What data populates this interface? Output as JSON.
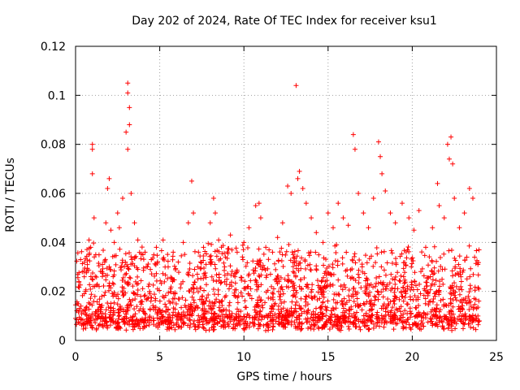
{
  "chart_data": {
    "type": "scatter",
    "title": "Day 202 of 2024, Rate Of TEC Index for receiver ksu1",
    "xlabel": "GPS time / hours",
    "ylabel": "ROTI / TECUs",
    "xlim": [
      0,
      25
    ],
    "ylim": [
      0,
      0.12
    ],
    "xticks": [
      "0",
      "5",
      "10",
      "15",
      "20",
      "25"
    ],
    "yticks": [
      "0",
      "0.02",
      "0.04",
      "0.06",
      "0.08",
      "0.1",
      "0.12"
    ],
    "grid": true,
    "marker": "+",
    "series": [
      {
        "name": "ROTI",
        "color": "#ff0000",
        "points": [
          [
            0.0,
            0.009
          ],
          [
            0.1,
            0.015
          ],
          [
            0.2,
            0.024
          ],
          [
            0.3,
            0.033
          ],
          [
            0.4,
            0.028
          ],
          [
            0.6,
            0.02
          ],
          [
            0.8,
            0.041
          ],
          [
            0.9,
            0.038
          ],
          [
            1.0,
            0.08
          ],
          [
            1.0,
            0.078
          ],
          [
            1.0,
            0.068
          ],
          [
            1.1,
            0.05
          ],
          [
            1.2,
            0.035
          ],
          [
            1.4,
            0.022
          ],
          [
            1.6,
            0.031
          ],
          [
            1.8,
            0.048
          ],
          [
            1.9,
            0.062
          ],
          [
            2.0,
            0.066
          ],
          [
            2.1,
            0.045
          ],
          [
            2.3,
            0.04
          ],
          [
            2.5,
            0.052
          ],
          [
            2.6,
            0.046
          ],
          [
            2.8,
            0.058
          ],
          [
            3.0,
            0.085
          ],
          [
            3.1,
            0.105
          ],
          [
            3.1,
            0.101
          ],
          [
            3.2,
            0.095
          ],
          [
            3.2,
            0.088
          ],
          [
            3.1,
            0.078
          ],
          [
            3.3,
            0.06
          ],
          [
            3.5,
            0.048
          ],
          [
            3.7,
            0.041
          ],
          [
            4.0,
            0.035
          ],
          [
            4.2,
            0.03
          ],
          [
            4.5,
            0.033
          ],
          [
            4.8,
            0.038
          ],
          [
            5.2,
            0.041
          ],
          [
            5.5,
            0.03
          ],
          [
            5.8,
            0.036
          ],
          [
            6.1,
            0.032
          ],
          [
            6.4,
            0.04
          ],
          [
            6.7,
            0.048
          ],
          [
            6.9,
            0.065
          ],
          [
            7.0,
            0.052
          ],
          [
            7.3,
            0.036
          ],
          [
            7.6,
            0.038
          ],
          [
            8.0,
            0.048
          ],
          [
            8.2,
            0.058
          ],
          [
            8.3,
            0.052
          ],
          [
            8.5,
            0.041
          ],
          [
            8.9,
            0.034
          ],
          [
            9.2,
            0.043
          ],
          [
            9.6,
            0.036
          ],
          [
            10.0,
            0.04
          ],
          [
            10.3,
            0.046
          ],
          [
            10.7,
            0.055
          ],
          [
            10.9,
            0.056
          ],
          [
            11.0,
            0.05
          ],
          [
            11.3,
            0.038
          ],
          [
            11.7,
            0.036
          ],
          [
            12.0,
            0.042
          ],
          [
            12.3,
            0.048
          ],
          [
            12.6,
            0.063
          ],
          [
            12.8,
            0.06
          ],
          [
            13.1,
            0.104
          ],
          [
            13.2,
            0.066
          ],
          [
            13.3,
            0.069
          ],
          [
            13.5,
            0.062
          ],
          [
            13.7,
            0.056
          ],
          [
            14.0,
            0.05
          ],
          [
            14.3,
            0.044
          ],
          [
            14.7,
            0.04
          ],
          [
            15.0,
            0.052
          ],
          [
            15.3,
            0.046
          ],
          [
            15.6,
            0.056
          ],
          [
            15.9,
            0.05
          ],
          [
            16.2,
            0.047
          ],
          [
            16.5,
            0.084
          ],
          [
            16.6,
            0.078
          ],
          [
            16.8,
            0.06
          ],
          [
            17.1,
            0.052
          ],
          [
            17.4,
            0.046
          ],
          [
            17.7,
            0.058
          ],
          [
            18.0,
            0.081
          ],
          [
            18.1,
            0.075
          ],
          [
            18.2,
            0.068
          ],
          [
            18.4,
            0.061
          ],
          [
            18.7,
            0.052
          ],
          [
            19.0,
            0.048
          ],
          [
            19.4,
            0.056
          ],
          [
            19.8,
            0.05
          ],
          [
            20.1,
            0.045
          ],
          [
            20.4,
            0.053
          ],
          [
            20.8,
            0.038
          ],
          [
            21.2,
            0.046
          ],
          [
            21.5,
            0.064
          ],
          [
            21.6,
            0.055
          ],
          [
            21.9,
            0.05
          ],
          [
            22.1,
            0.08
          ],
          [
            22.2,
            0.074
          ],
          [
            22.3,
            0.083
          ],
          [
            22.4,
            0.072
          ],
          [
            22.5,
            0.058
          ],
          [
            22.8,
            0.046
          ],
          [
            23.1,
            0.052
          ],
          [
            23.4,
            0.062
          ],
          [
            23.6,
            0.058
          ],
          [
            23.9,
            0.031
          ]
        ]
      }
    ]
  }
}
